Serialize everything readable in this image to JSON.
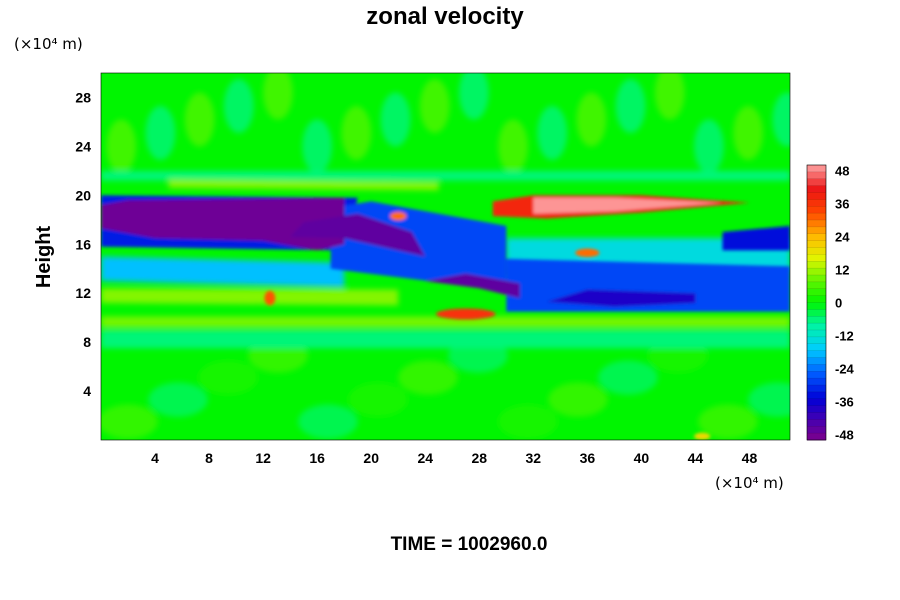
{
  "chart_data": {
    "type": "heatmap",
    "title": "zonal velocity",
    "ylabel": "Height",
    "x_unit": "(×10⁴ m)",
    "y_unit": "(×10⁴ m)",
    "xlim": [
      0,
      51
    ],
    "ylim": [
      0,
      30
    ],
    "x_ticks": [
      "4",
      "8",
      "12",
      "16",
      "20",
      "24",
      "28",
      "32",
      "36",
      "40",
      "44",
      "48"
    ],
    "y_ticks": [
      "4",
      "8",
      "12",
      "16",
      "20",
      "24",
      "28"
    ],
    "colorbar": {
      "min": -50,
      "max": 50,
      "ticks": [
        "48",
        "36",
        "24",
        "12",
        "0",
        "-12",
        "-24",
        "-36",
        "-48"
      ]
    },
    "features": [
      {
        "region": "x 0 to 18, y 16 to 20",
        "value": -48
      },
      {
        "region": "x 18 to 30, y 12 to 19",
        "value": -40
      },
      {
        "region": "x 30 to 52, y 10 to 14",
        "value": -38
      },
      {
        "region": "x 30 to 47, y 18 to 20",
        "value": 48
      },
      {
        "region": "x 23 to 29, y 9.5 to 11",
        "value": 36
      },
      {
        "region": "x 0 to 51, y 0 to 9",
        "value": 0
      }
    ],
    "annotation": "TIME = 1002960.0"
  }
}
